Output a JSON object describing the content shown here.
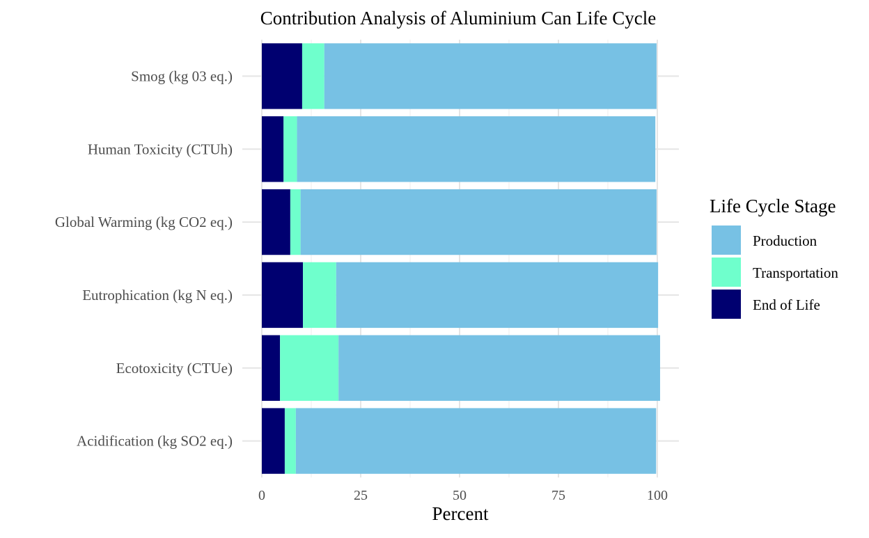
{
  "chart_data": {
    "type": "bar",
    "orientation": "horizontal",
    "stacked": true,
    "title": "Contribution Analysis of Aluminium Can Life Cycle",
    "xlabel": "Percent",
    "ylabel": "",
    "xlim": [
      0,
      100
    ],
    "xticks": [
      "0",
      "25",
      "50",
      "75",
      "100"
    ],
    "grid": true,
    "legend_position": "right",
    "legend_title": "Life Cycle Stage",
    "categories": [
      "Smog (kg 03 eq.)",
      "Human Toxicity (CTUh)",
      "Global Warming (kg CO2 eq.)",
      "Eutrophication (kg N eq.)",
      "Ecotoxicity (CTUe)",
      "Acidification (kg SO2 eq.)"
    ],
    "series": [
      {
        "name": "End of Life",
        "color": "#000070",
        "values": [
          10.2,
          5.5,
          7.2,
          10.4,
          4.6,
          5.8
        ]
      },
      {
        "name": "Transportation",
        "color": "#6fffcc",
        "values": [
          5.6,
          3.4,
          2.6,
          8.4,
          14.8,
          2.8
        ]
      },
      {
        "name": "Production",
        "color": "#77c1e4",
        "values": [
          84.0,
          90.6,
          90.0,
          81.4,
          81.3,
          91.1
        ]
      }
    ],
    "legend_order": [
      "Production",
      "Transportation",
      "End of Life"
    ]
  }
}
